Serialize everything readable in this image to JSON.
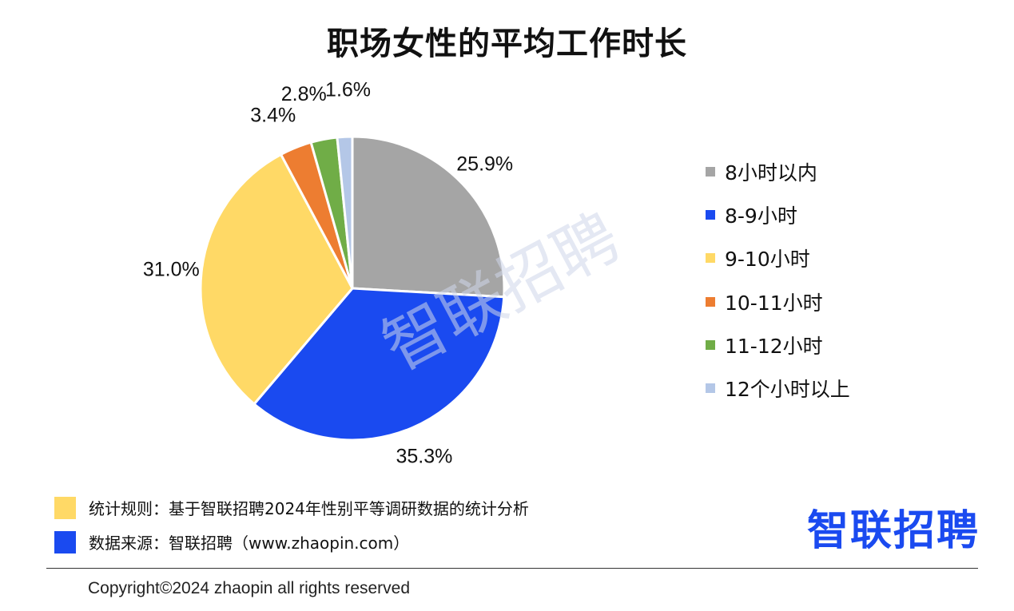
{
  "chart_data": {
    "type": "pie",
    "title": "职场女性的平均工作时长",
    "categories": [
      "8小时以内",
      "8-9小时",
      "9-10小时",
      "10-11小时",
      "11-12小时",
      "12个小时以上"
    ],
    "values": [
      25.9,
      35.3,
      31.0,
      3.4,
      2.8,
      1.6
    ],
    "data_labels": [
      "25.9%",
      "35.3%",
      "31.0%",
      "3.4%",
      "2.8%",
      "1.6%"
    ],
    "colors": [
      "#a5a5a5",
      "#1a4af0",
      "#ffd966",
      "#ed7d31",
      "#70ad47",
      "#b4c7e7"
    ],
    "legend_position": "right",
    "start_angle_deg": 0,
    "direction": "clockwise"
  },
  "watermark": "智联招聘",
  "notes": [
    {
      "text": "统计规则：基于智联招聘2024年性别平等调研数据的统计分析",
      "color": "#ffd966"
    },
    {
      "text": "数据来源：智联招聘（www.zhaopin.com）",
      "color": "#1a4af0"
    }
  ],
  "logo_text": "智联招聘",
  "copyright": "Copyright©2024 zhaopin all rights reserved"
}
